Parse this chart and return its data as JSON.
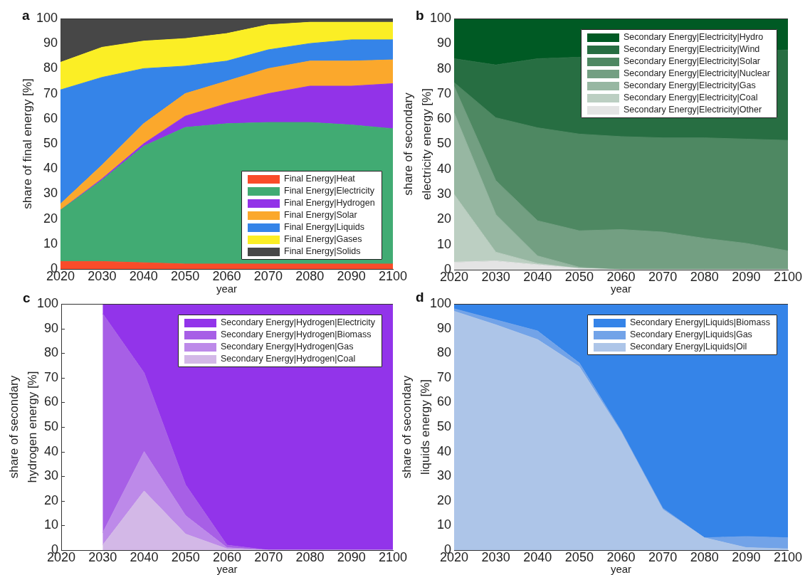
{
  "chart_data": [
    {
      "type": "area",
      "title": "a",
      "xlabel": "year",
      "ylabel": "share of final energy [%]",
      "stacked": true,
      "legend": "bottom right",
      "x": [
        2020,
        2030,
        2040,
        2050,
        2060,
        2070,
        2080,
        2090,
        2100
      ],
      "xlim": [
        2020,
        2100
      ],
      "xticks": [
        2020,
        2030,
        2040,
        2050,
        2060,
        2070,
        2080,
        2090,
        2100
      ],
      "ylim": [
        0,
        100
      ],
      "yticks": [
        0,
        10,
        20,
        30,
        40,
        50,
        60,
        70,
        80,
        90,
        100
      ],
      "series": [
        {
          "name": "Final Energy|Heat",
          "color": "#f94c2a",
          "values": [
            3,
            3,
            2.5,
            2,
            2,
            2,
            2,
            2,
            2
          ]
        },
        {
          "name": "Final Energy|Electricity",
          "color": "#41ab73",
          "values": [
            20.5,
            32.5,
            46.5,
            54.5,
            56,
            56.5,
            56.5,
            55.5,
            54
          ]
        },
        {
          "name": "Final Energy|Hydrogen",
          "color": "#9233e8",
          "values": [
            0,
            0.5,
            1,
            4.5,
            8,
            11.5,
            14.5,
            15.5,
            18
          ]
        },
        {
          "name": "Final Energy|Solar",
          "color": "#fba82c",
          "values": [
            2.5,
            5.5,
            8,
            9,
            9,
            10,
            10,
            10,
            9.5
          ]
        },
        {
          "name": "Final Energy|Liquids",
          "color": "#3584e8",
          "values": [
            45.5,
            35,
            22,
            11,
            8,
            7.5,
            7,
            8.5,
            8
          ]
        },
        {
          "name": "Final Energy|Gases",
          "color": "#fbee25",
          "values": [
            11,
            12,
            11,
            11,
            11,
            10,
            8.5,
            7,
            7
          ]
        },
        {
          "name": "Final Energy|Solids",
          "color": "#474747",
          "values": [
            17.5,
            11.5,
            9,
            8,
            6,
            2.5,
            1.5,
            1.5,
            1.5
          ]
        }
      ]
    },
    {
      "type": "area",
      "title": "b",
      "xlabel": "year",
      "ylabel": "share of secondary\nelectricity energy [%]",
      "stacked": true,
      "legend": "top right",
      "x": [
        2020,
        2030,
        2040,
        2050,
        2060,
        2070,
        2080,
        2090,
        2100
      ],
      "xlim": [
        2020,
        2100
      ],
      "xticks": [
        2020,
        2030,
        2040,
        2050,
        2060,
        2070,
        2080,
        2090,
        2100
      ],
      "ylim": [
        0,
        100
      ],
      "yticks": [
        0,
        10,
        20,
        30,
        40,
        50,
        60,
        70,
        80,
        90,
        100
      ],
      "series": [
        {
          "name": "Secondary Energy|Electricity|Other",
          "color": "#e4e4e4",
          "values": [
            3,
            3.5,
            2,
            0.5,
            0,
            0,
            0,
            0,
            0
          ]
        },
        {
          "name": "Secondary Energy|Electricity|Coal",
          "color": "#bccfc2",
          "values": [
            27,
            3.5,
            0.5,
            0,
            0,
            0,
            0,
            0,
            0
          ]
        },
        {
          "name": "Secondary Energy|Electricity|Gas",
          "color": "#97b7a2",
          "values": [
            32.5,
            15,
            3,
            0.5,
            0,
            0,
            0,
            0,
            0
          ]
        },
        {
          "name": "Secondary Energy|Electricity|Nuclear",
          "color": "#739f82",
          "values": [
            10.5,
            13.5,
            14,
            14.5,
            16,
            15,
            12.5,
            10.5,
            7.5
          ]
        },
        {
          "name": "Secondary Energy|Electricity|Solar",
          "color": "#4e8862",
          "values": [
            1.5,
            25,
            37,
            38.5,
            37,
            37.5,
            40,
            41.5,
            44
          ]
        },
        {
          "name": "Secondary Energy|Electricity|Wind",
          "color": "#276e42",
          "values": [
            9.5,
            21,
            27.5,
            null,
            null,
            null,
            null,
            null,
            36
          ]
        },
        {
          "name": "Secondary Energy|Electricity|Hydro",
          "color": "#005a24",
          "values": [
            16,
            18.5,
            16,
            null,
            null,
            null,
            null,
            null,
            12.5
          ]
        }
      ]
    },
    {
      "type": "area",
      "title": "c",
      "xlabel": "year",
      "ylabel": "share of secondary\nhydrogen energy [%]",
      "stacked": true,
      "legend": "top right",
      "x": [
        2030,
        2040,
        2050,
        2060,
        2070,
        2080,
        2090,
        2100
      ],
      "xlim": [
        2020,
        2100
      ],
      "xticks": [
        2020,
        2030,
        2040,
        2050,
        2060,
        2070,
        2080,
        2090,
        2100
      ],
      "ylim": [
        0,
        100
      ],
      "yticks": [
        0,
        10,
        20,
        30,
        40,
        50,
        60,
        70,
        80,
        90,
        100
      ],
      "series": [
        {
          "name": "Secondary Energy|Hydrogen|Coal",
          "color": "#d3b8e7",
          "values": [
            2,
            24,
            6.5,
            0.5,
            0,
            0,
            0,
            0
          ]
        },
        {
          "name": "Secondary Energy|Hydrogen|Gas",
          "color": "#bd8ae9",
          "values": [
            5,
            16,
            7.5,
            0.5,
            0,
            0,
            0,
            0
          ]
        },
        {
          "name": "Secondary Energy|Hydrogen|Biomass",
          "color": "#a75fe6",
          "values": [
            89,
            32,
            12.5,
            1,
            0,
            0,
            0,
            0
          ]
        },
        {
          "name": "Secondary Energy|Hydrogen|Electricity",
          "color": "#9234ea",
          "values": [
            4,
            28,
            73.5,
            98,
            100,
            100,
            100,
            100
          ]
        }
      ]
    },
    {
      "type": "area",
      "title": "d",
      "xlabel": "year",
      "ylabel": "share of secondary\nliquids energy [%]",
      "stacked": true,
      "legend": "top right",
      "x": [
        2020,
        2030,
        2040,
        2050,
        2060,
        2070,
        2080,
        2090,
        2100
      ],
      "xlim": [
        2020,
        2100
      ],
      "xticks": [
        2020,
        2030,
        2040,
        2050,
        2060,
        2070,
        2080,
        2090,
        2100
      ],
      "ylim": [
        0,
        100
      ],
      "yticks": [
        0,
        10,
        20,
        30,
        40,
        50,
        60,
        70,
        80,
        90,
        100
      ],
      "series": [
        {
          "name": "Secondary Energy|Liquids|Oil",
          "color": "#adc5e8",
          "values": [
            97,
            91.5,
            85.5,
            74.5,
            48,
            16.5,
            5,
            1,
            0.5
          ]
        },
        {
          "name": "Secondary Energy|Liquids|Gas",
          "color": "#72a3e8",
          "values": [
            1,
            2,
            3.5,
            1.5,
            0.5,
            0.5,
            0,
            4.5,
            4.5
          ]
        },
        {
          "name": "Secondary Energy|Liquids|Biomass",
          "color": "#3584e8",
          "values": [
            2,
            6.5,
            11,
            24,
            51.5,
            83,
            95,
            94.5,
            95
          ]
        }
      ]
    }
  ]
}
